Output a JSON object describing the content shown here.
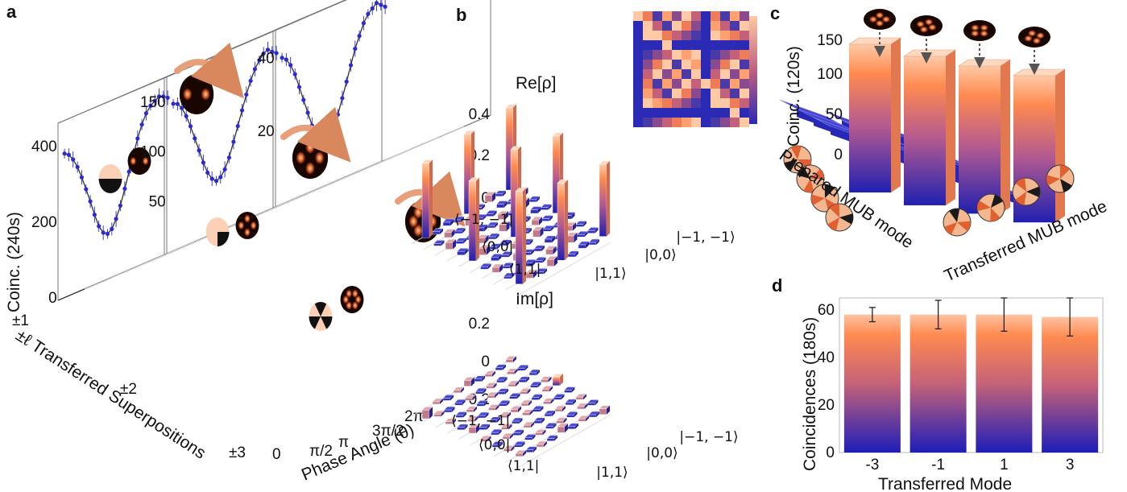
{
  "panels": [
    "a",
    "b",
    "c",
    "d"
  ],
  "colors": {
    "low": "#2020b0",
    "high": "#ff8a50",
    "top": "#ffd0b0",
    "curve": "#2b2bd0",
    "fit": "#333333"
  },
  "chart_data": [
    {
      "id": "a",
      "type": "line",
      "ylabel": "Coinc. (240s)",
      "xlabel": "Phase Angle (θ)",
      "zlabel": "±ℓ Transferred Superpositions",
      "phase_ticks": [
        "π/2",
        "π",
        "3π/2",
        "2π"
      ],
      "phase_zero": "0",
      "depth_ticks": [
        "±1",
        "±2",
        "±3"
      ],
      "series": [
        {
          "name": "±1",
          "yticks": [
            "0",
            "200",
            "400"
          ],
          "x": [
            0,
            0.26,
            0.52,
            0.79,
            1.05,
            1.31,
            1.57,
            1.83,
            2.09,
            2.36,
            2.62,
            2.88,
            3.14,
            3.4,
            3.67,
            3.93,
            4.19,
            4.45,
            4.71,
            4.97,
            5.24,
            5.5,
            5.76,
            6.02,
            6.28
          ],
          "values": [
            380,
            372,
            355,
            330,
            298,
            262,
            225,
            185,
            150,
            128,
            120,
            128,
            150,
            180,
            220,
            260,
            300,
            338,
            370,
            395,
            410,
            418,
            425,
            420,
            412
          ]
        },
        {
          "name": "±2",
          "yticks": [
            "50",
            "100",
            "150"
          ],
          "x": [
            0,
            0.26,
            0.52,
            0.79,
            1.05,
            1.31,
            1.57,
            1.83,
            2.09,
            2.36,
            2.62,
            2.88,
            3.14,
            3.4,
            3.67,
            3.93,
            4.19,
            4.45,
            4.71,
            4.97,
            5.24,
            5.5,
            5.76,
            6.02,
            6.28
          ],
          "values": [
            148,
            146,
            140,
            130,
            118,
            104,
            90,
            76,
            64,
            56,
            52,
            54,
            60,
            70,
            84,
            98,
            112,
            126,
            138,
            148,
            155,
            160,
            162,
            158,
            155
          ]
        },
        {
          "name": "±3",
          "yticks": [
            "20",
            "40"
          ],
          "x": [
            0,
            0.26,
            0.52,
            0.79,
            1.05,
            1.31,
            1.57,
            1.83,
            2.09,
            2.36,
            2.62,
            2.88,
            3.14,
            3.4,
            3.67,
            3.93,
            4.19,
            4.45,
            4.71,
            4.97,
            5.24,
            5.5,
            5.76,
            6.02,
            6.28
          ],
          "values": [
            40,
            39,
            37,
            34,
            30,
            26,
            22,
            18,
            15,
            13,
            12,
            13,
            15,
            18,
            22,
            26,
            30,
            34,
            37,
            40,
            42,
            43,
            44,
            43,
            42
          ]
        }
      ]
    },
    {
      "id": "b",
      "type": "bar",
      "title_re": "Re[ρ]",
      "title_im": "Im[ρ]",
      "re_ticks": [
        "0",
        "0.2",
        "0.4"
      ],
      "im_ticks": [
        "-0.2",
        "0",
        "0.2"
      ],
      "row_labels": [
        "⟨−1, −1|",
        "⟨0,0|",
        "⟨1,1|"
      ],
      "col_labels": [
        "|1,1⟩",
        "|0,0⟩",
        "|−1, −1⟩"
      ],
      "re_values": [
        [
          0.32,
          0.3,
          0.28
        ],
        [
          0.31,
          0.34,
          0.3
        ],
        [
          0.29,
          0.31,
          0.36
        ]
      ],
      "im_values": [
        [
          0.01,
          0.03,
          -0.02
        ],
        [
          0.02,
          -0.01,
          0.02
        ],
        [
          -0.03,
          0.02,
          0.01
        ]
      ]
    },
    {
      "id": "c",
      "type": "bar",
      "ylabel": "Coinc. (120s)",
      "yticks": [
        "0",
        "50",
        "100",
        "150"
      ],
      "xlabel": "Transferred MUB mode",
      "zlabel": "Prepared MUB mode",
      "diagonal": [
        148,
        152,
        145,
        140
      ],
      "offdiag_max": 18
    },
    {
      "id": "d",
      "type": "bar",
      "ylabel": "Coincidences (180s)",
      "xlabel": "Transferred Mode",
      "categories": [
        "-3",
        "-1",
        "1",
        "3"
      ],
      "values": [
        58,
        58,
        58,
        57
      ],
      "errors": [
        3,
        6,
        7,
        8
      ],
      "yticks": [
        "0",
        "20",
        "40",
        "60"
      ],
      "ylim": [
        0,
        65
      ]
    }
  ]
}
